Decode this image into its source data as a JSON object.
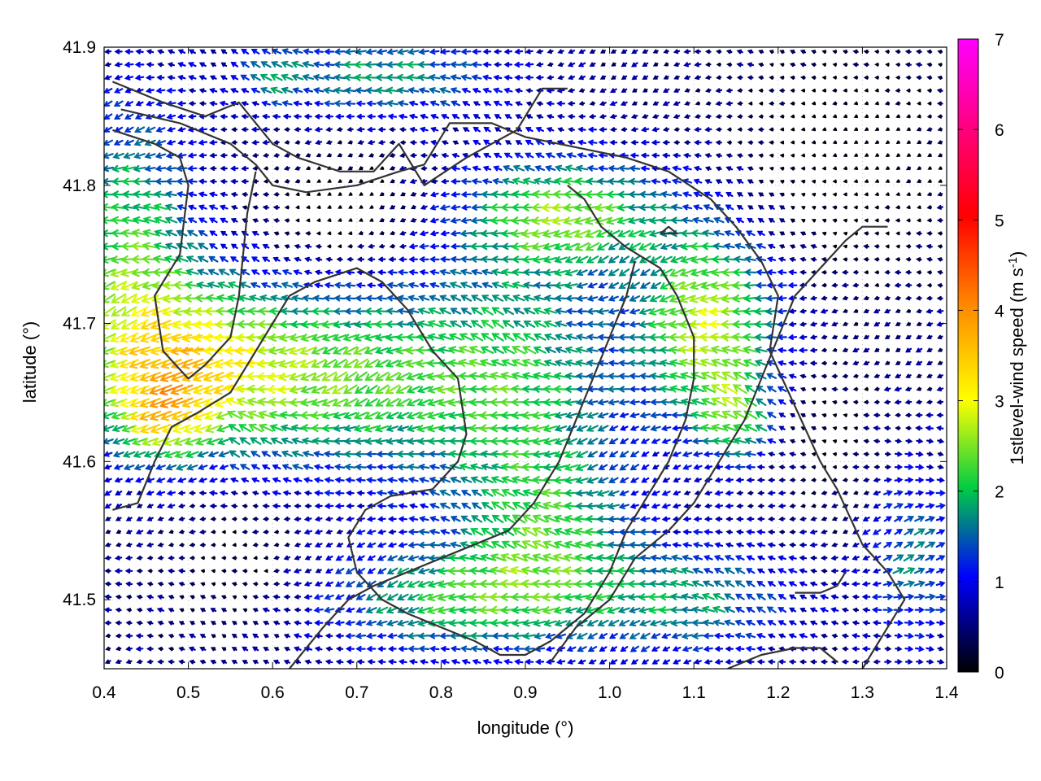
{
  "chart_data": {
    "type": "vector-field",
    "title": "",
    "xlabel": "longitude (°)",
    "ylabel": "latitude (°)",
    "xlim": [
      0.4,
      1.4
    ],
    "ylim": [
      41.45,
      41.9
    ],
    "xticks": [
      0.4,
      0.5,
      0.6,
      0.7,
      0.8,
      0.9,
      1.0,
      1.1,
      1.2,
      1.3,
      1.4
    ],
    "xtick_labels": [
      "0.4",
      "0.5",
      "0.6",
      "0.7",
      "0.8",
      "0.9",
      "1.0",
      "1.1",
      "1.2",
      "1.3",
      "1.4"
    ],
    "yticks": [
      41.5,
      41.6,
      41.7,
      41.8,
      41.9
    ],
    "ytick_labels": [
      "41.5",
      "41.6",
      "41.7",
      "41.8",
      "41.9"
    ],
    "grid": true,
    "colorbar": {
      "label": "1stlevel-wind speed (m s",
      "label_superscript": "-1",
      "label_suffix": ")",
      "range": [
        0,
        7
      ],
      "ticks": [
        0,
        1,
        2,
        3,
        4,
        5,
        6,
        7
      ],
      "tick_labels": [
        "0",
        "1",
        "2",
        "3",
        "4",
        "5",
        "6",
        "7"
      ],
      "colors": [
        "#000000",
        "#0000ff",
        "#00cc44",
        "#ffff00",
        "#ff8800",
        "#ff0000",
        "#ff00ff"
      ]
    },
    "contour_color": "#333333",
    "contours": [
      [
        [
          0.41,
          41.875
        ],
        [
          0.47,
          41.86
        ],
        [
          0.52,
          41.85
        ],
        [
          0.56,
          41.86
        ],
        [
          0.6,
          41.83
        ],
        [
          0.63,
          41.82
        ],
        [
          0.68,
          41.81
        ],
        [
          0.72,
          41.81
        ],
        [
          0.75,
          41.83
        ],
        [
          0.78,
          41.8
        ],
        [
          0.83,
          41.82
        ],
        [
          0.89,
          41.84
        ],
        [
          0.92,
          41.87
        ],
        [
          0.95,
          41.87
        ]
      ],
      [
        [
          0.42,
          41.855
        ],
        [
          0.49,
          41.845
        ],
        [
          0.55,
          41.83
        ],
        [
          0.58,
          41.815
        ],
        [
          0.6,
          41.8
        ],
        [
          0.64,
          41.795
        ],
        [
          0.7,
          41.8
        ],
        [
          0.75,
          41.81
        ],
        [
          0.78,
          41.815
        ],
        [
          0.81,
          41.845
        ],
        [
          0.86,
          41.845
        ],
        [
          0.9,
          41.835
        ],
        [
          0.94,
          41.83
        ],
        [
          1.02,
          41.82
        ],
        [
          1.07,
          41.81
        ],
        [
          1.12,
          41.79
        ],
        [
          1.15,
          41.77
        ],
        [
          1.18,
          41.745
        ],
        [
          1.2,
          41.72
        ],
        [
          1.19,
          41.68
        ],
        [
          1.22,
          41.64
        ],
        [
          1.25,
          41.6
        ],
        [
          1.27,
          41.58
        ],
        [
          1.3,
          41.54
        ],
        [
          1.33,
          41.52
        ],
        [
          1.35,
          41.5
        ],
        [
          1.32,
          41.47
        ],
        [
          1.3,
          41.45
        ]
      ],
      [
        [
          0.41,
          41.84
        ],
        [
          0.46,
          41.83
        ],
        [
          0.49,
          41.82
        ],
        [
          0.5,
          41.8
        ],
        [
          0.49,
          41.75
        ],
        [
          0.46,
          41.72
        ],
        [
          0.47,
          41.68
        ],
        [
          0.5,
          41.66
        ],
        [
          0.52,
          41.67
        ],
        [
          0.55,
          41.69
        ],
        [
          0.56,
          41.72
        ],
        [
          0.57,
          41.78
        ],
        [
          0.58,
          41.81
        ]
      ],
      [
        [
          0.41,
          41.565
        ],
        [
          0.44,
          41.57
        ],
        [
          0.46,
          41.6
        ],
        [
          0.48,
          41.625
        ],
        [
          0.51,
          41.635
        ],
        [
          0.55,
          41.65
        ],
        [
          0.58,
          41.68
        ],
        [
          0.6,
          41.7
        ],
        [
          0.62,
          41.72
        ],
        [
          0.65,
          41.73
        ],
        [
          0.7,
          41.74
        ],
        [
          0.73,
          41.73
        ],
        [
          0.76,
          41.71
        ],
        [
          0.79,
          41.68
        ],
        [
          0.82,
          41.66
        ],
        [
          0.83,
          41.62
        ],
        [
          0.82,
          41.6
        ],
        [
          0.79,
          41.58
        ],
        [
          0.74,
          41.575
        ],
        [
          0.71,
          41.565
        ],
        [
          0.69,
          41.545
        ],
        [
          0.7,
          41.52
        ],
        [
          0.73,
          41.5
        ],
        [
          0.76,
          41.49
        ],
        [
          0.8,
          41.48
        ],
        [
          0.84,
          41.47
        ],
        [
          0.87,
          41.46
        ],
        [
          0.9,
          41.46
        ],
        [
          0.93,
          41.47
        ],
        [
          0.97,
          41.49
        ],
        [
          1.0,
          41.52
        ],
        [
          1.02,
          41.55
        ],
        [
          1.05,
          41.58
        ],
        [
          1.07,
          41.6
        ],
        [
          1.09,
          41.63
        ],
        [
          1.1,
          41.66
        ],
        [
          1.1,
          41.69
        ],
        [
          1.08,
          41.72
        ],
        [
          1.06,
          41.74
        ],
        [
          1.02,
          41.755
        ],
        [
          0.99,
          41.77
        ],
        [
          0.97,
          41.79
        ],
        [
          0.95,
          41.8
        ]
      ],
      [
        [
          0.62,
          41.45
        ],
        [
          0.66,
          41.48
        ],
        [
          0.69,
          41.5
        ],
        [
          0.72,
          41.51
        ],
        [
          0.76,
          41.52
        ],
        [
          0.8,
          41.53
        ],
        [
          0.84,
          41.54
        ],
        [
          0.88,
          41.55
        ],
        [
          0.91,
          41.57
        ],
        [
          0.94,
          41.6
        ],
        [
          0.96,
          41.63
        ],
        [
          0.98,
          41.66
        ],
        [
          1.0,
          41.69
        ],
        [
          1.02,
          41.72
        ],
        [
          1.03,
          41.745
        ]
      ],
      [
        [
          0.93,
          41.455
        ],
        [
          0.96,
          41.48
        ],
        [
          1.0,
          41.5
        ],
        [
          1.03,
          41.53
        ],
        [
          1.07,
          41.55
        ],
        [
          1.1,
          41.57
        ],
        [
          1.13,
          41.6
        ],
        [
          1.16,
          41.63
        ],
        [
          1.18,
          41.66
        ],
        [
          1.2,
          41.69
        ],
        [
          1.22,
          41.72
        ],
        [
          1.25,
          41.74
        ],
        [
          1.28,
          41.76
        ],
        [
          1.3,
          41.77
        ],
        [
          1.33,
          41.77
        ]
      ],
      [
        [
          1.14,
          41.45
        ],
        [
          1.18,
          41.46
        ],
        [
          1.22,
          41.465
        ],
        [
          1.25,
          41.465
        ],
        [
          1.27,
          41.455
        ]
      ],
      [
        [
          1.22,
          41.505
        ],
        [
          1.25,
          41.505
        ],
        [
          1.27,
          41.51
        ],
        [
          1.28,
          41.52
        ]
      ],
      [
        [
          1.06,
          41.765
        ],
        [
          1.08,
          41.765
        ],
        [
          1.07,
          41.77
        ],
        [
          1.06,
          41.765
        ]
      ]
    ]
  }
}
